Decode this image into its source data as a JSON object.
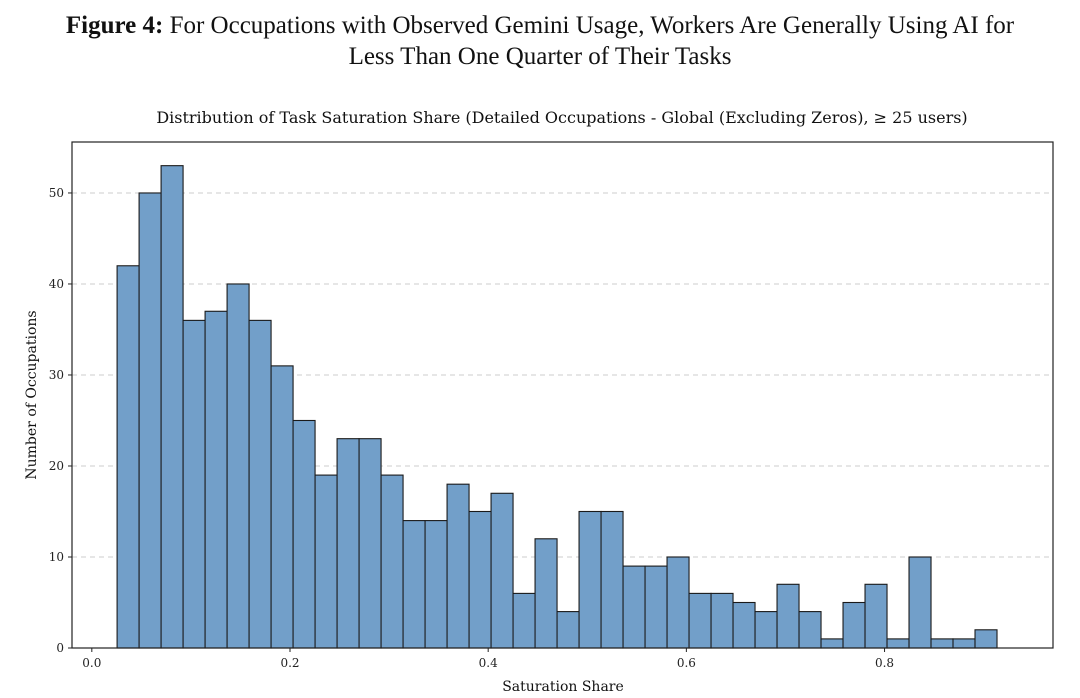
{
  "figure": {
    "label": "Figure 4:",
    "title_line1": "For Occupations with Observed Gemini Usage, Workers Are Generally Using AI for",
    "title_line2": "Less Than One Quarter of Their Tasks"
  },
  "chart_data": {
    "type": "bar",
    "title": "Distribution of Task Saturation Share (Detailed Occupations - Global (Excluding Zeros), ≥ 25 users)",
    "xlabel": "Saturation Share",
    "ylabel": "Number of Occupations",
    "xlim": [
      -0.02,
      0.97
    ],
    "ylim": [
      0,
      55.6
    ],
    "xticks": [
      0.0,
      0.2,
      0.4,
      0.6,
      0.8
    ],
    "xtick_labels": [
      "0.0",
      "0.2",
      "0.4",
      "0.6",
      "0.8"
    ],
    "yticks": [
      0,
      10,
      20,
      30,
      40,
      50
    ],
    "ytick_labels": [
      "0",
      "10",
      "20",
      "30",
      "40",
      "50"
    ],
    "grid": "horizontal dashed",
    "bin_start": 0.0255,
    "bin_width": 0.0222,
    "values": [
      42,
      50,
      53,
      36,
      37,
      40,
      36,
      31,
      25,
      19,
      23,
      23,
      19,
      14,
      14,
      18,
      15,
      17,
      6,
      12,
      4,
      15,
      15,
      9,
      9,
      10,
      6,
      6,
      5,
      4,
      7,
      4,
      1,
      5,
      7,
      1,
      10,
      1,
      1,
      2
    ],
    "colors": {
      "bar_fill": "#729fc9",
      "bar_edge": "#1a1a1a",
      "grid": "#cccccc",
      "frame": "#222222"
    }
  }
}
